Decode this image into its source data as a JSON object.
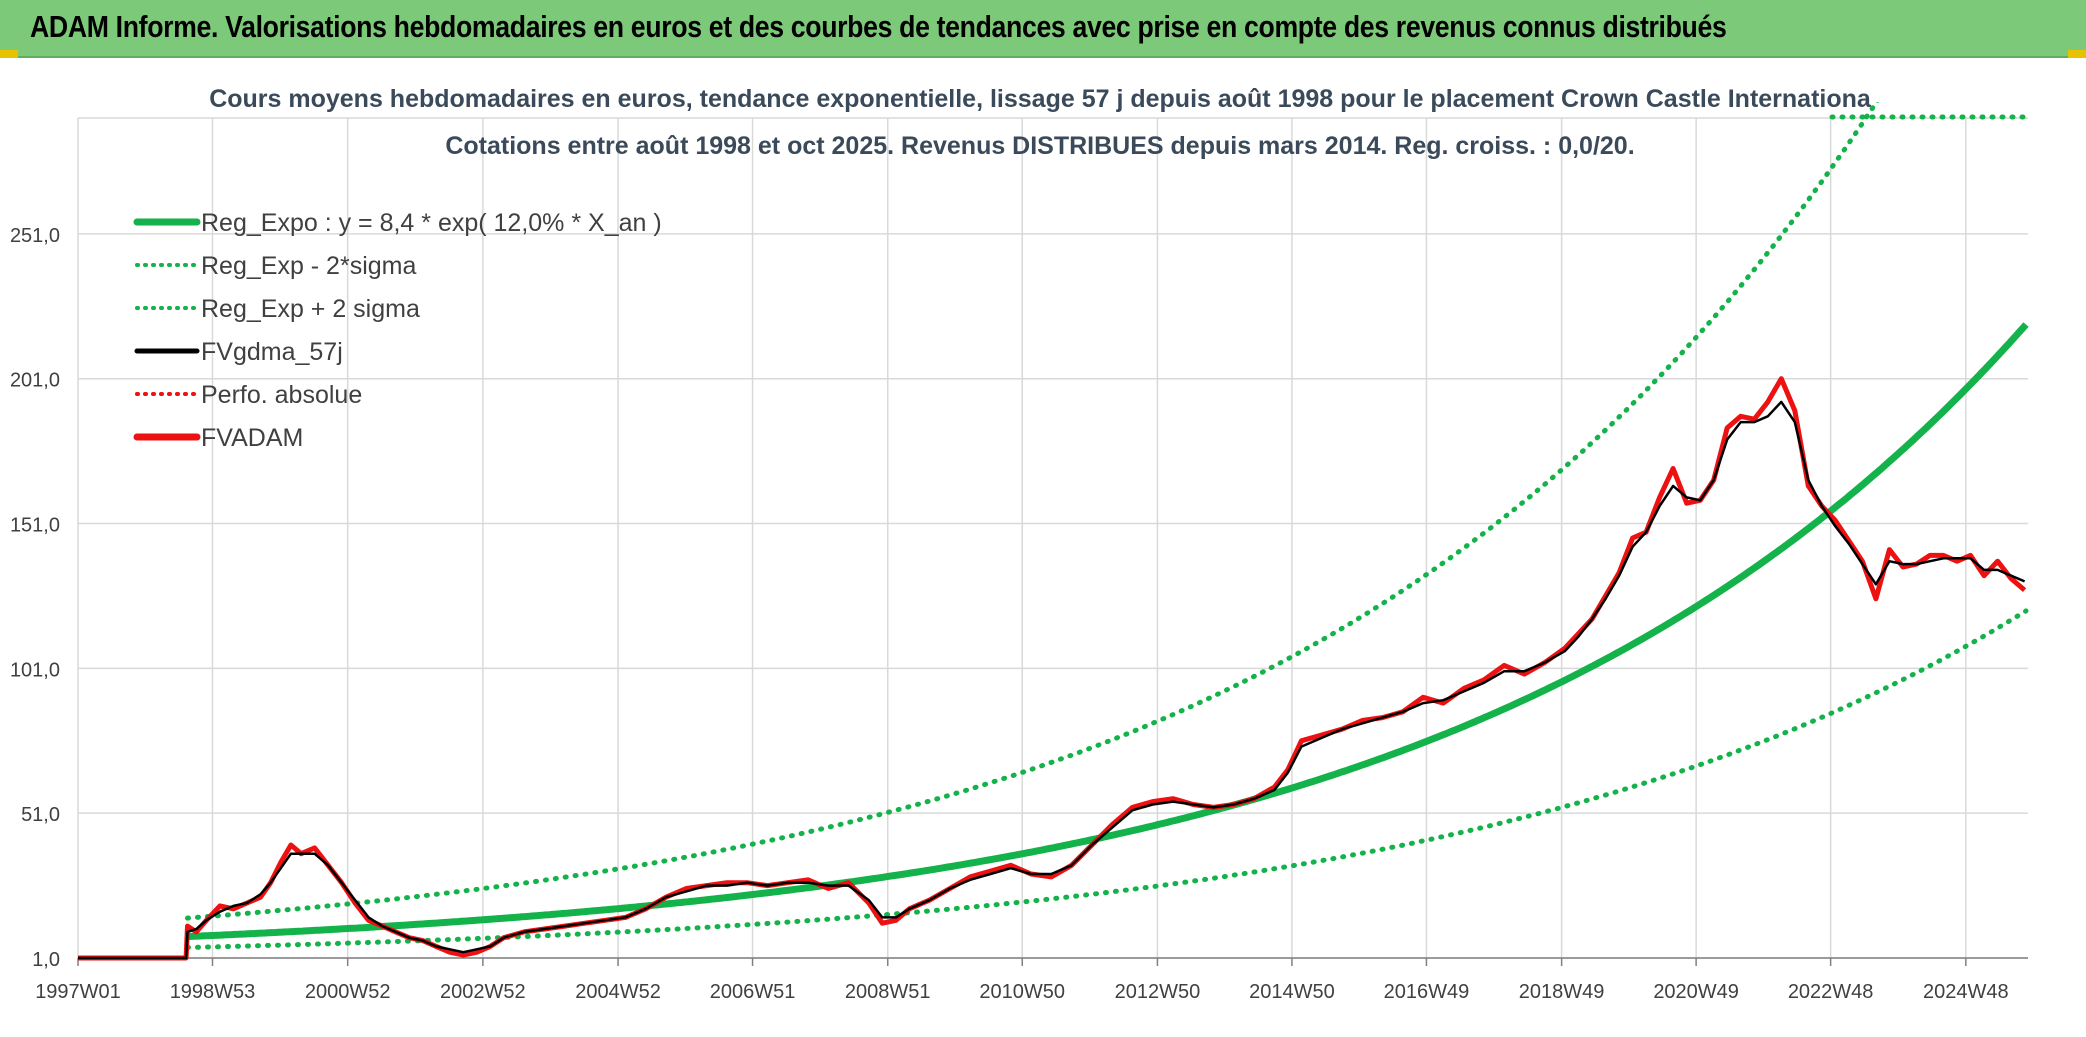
{
  "header": {
    "title": "ADAM Informe. Valorisations hebdomadaires en euros et des courbes de tendances avec prise en compte des revenus connus distribués"
  },
  "colors": {
    "header_bg": "#7dc97a",
    "green": "#13b24a",
    "red": "#ee1111",
    "black": "#000000",
    "grid": "#d9d9d9"
  },
  "chart_data": {
    "type": "line",
    "title": "Cours moyens hebdomadaires en euros, tendance exponentielle, lissage 57 j depuis août 1998 pour le placement Crown Castle Internationa",
    "subtitle": "Cotations entre août 1998 et oct 2025. Revenus DISTRIBUES depuis mars 2014. Reg. croiss. : 0,0/20.",
    "xlabel": "",
    "ylabel": "",
    "x_range": [
      1997.0,
      2025.85
    ],
    "ylim": [
      1,
      291
    ],
    "y_ticks": [
      1,
      51,
      101,
      151,
      201,
      251
    ],
    "y_tick_labels": [
      "1,0",
      "51,0",
      "101,0",
      "151,0",
      "201,0",
      "251,0"
    ],
    "x_ticks": [
      1997.0,
      1998.99,
      2000.99,
      2002.99,
      2004.99,
      2006.98,
      2008.98,
      2010.97,
      2012.97,
      2014.96,
      2016.95,
      2018.95,
      2020.94,
      2022.93,
      2024.93
    ],
    "x_tick_labels": [
      "1997W01",
      "1998W53",
      "2000W52",
      "2002W52",
      "2004W52",
      "2006W51",
      "2008W51",
      "2010W50",
      "2012W50",
      "2014W50",
      "2016W49",
      "2018W49",
      "2020W49",
      "2022W48",
      "2024W48"
    ],
    "legend": [
      {
        "label": "Reg_Expo : y = 8,4 * exp( 12,0% *  X_an )",
        "color": "#13b24a",
        "style": "solid-thick"
      },
      {
        "label": "Reg_Exp - 2*sigma",
        "color": "#13b24a",
        "style": "dotted"
      },
      {
        "label": "Reg_Exp + 2 sigma",
        "color": "#13b24a",
        "style": "dotted"
      },
      {
        "label": "FVgdma_57j",
        "color": "#000000",
        "style": "solid"
      },
      {
        "label": "Perfo. absolue",
        "color": "#ee1111",
        "style": "dotted"
      },
      {
        "label": "FVADAM",
        "color": "#ee1111",
        "style": "solid-thick"
      }
    ],
    "legend_position": "top-left",
    "trend": {
      "start_x": 1998.62,
      "a": 8.4,
      "rate": 0.12,
      "minus_factor": 0.55,
      "plus_factor": 1.76
    },
    "series": [
      {
        "name": "FVADAM",
        "x": [
          1997.0,
          1998.6,
          1998.62,
          1998.75,
          1998.9,
          1999.1,
          1999.3,
          1999.5,
          1999.7,
          1999.85,
          2000.0,
          2000.15,
          2000.3,
          2000.5,
          2000.7,
          2000.9,
          2001.1,
          2001.3,
          2001.5,
          2001.7,
          2001.9,
          2002.1,
          2002.3,
          2002.5,
          2002.7,
          2002.9,
          2003.1,
          2003.3,
          2003.6,
          2003.9,
          2004.2,
          2004.5,
          2004.8,
          2005.1,
          2005.4,
          2005.7,
          2006.0,
          2006.3,
          2006.6,
          2006.9,
          2007.2,
          2007.5,
          2007.8,
          2008.1,
          2008.4,
          2008.7,
          2008.9,
          2009.1,
          2009.3,
          2009.6,
          2009.9,
          2010.2,
          2010.5,
          2010.8,
          2011.1,
          2011.4,
          2011.7,
          2012.0,
          2012.3,
          2012.6,
          2012.9,
          2013.2,
          2013.5,
          2013.8,
          2014.1,
          2014.4,
          2014.7,
          2014.9,
          2015.1,
          2015.4,
          2015.7,
          2016.0,
          2016.3,
          2016.6,
          2016.9,
          2017.2,
          2017.5,
          2017.8,
          2018.1,
          2018.4,
          2018.7,
          2019.0,
          2019.2,
          2019.4,
          2019.6,
          2019.8,
          2020.0,
          2020.2,
          2020.4,
          2020.6,
          2020.8,
          2021.0,
          2021.2,
          2021.4,
          2021.6,
          2021.8,
          2022.0,
          2022.2,
          2022.4,
          2022.6,
          2022.8,
          2023.0,
          2023.2,
          2023.4,
          2023.6,
          2023.8,
          2024.0,
          2024.2,
          2024.4,
          2024.6,
          2024.8,
          2025.0,
          2025.2,
          2025.4,
          2025.6,
          2025.8
        ],
        "values": [
          1,
          1,
          12,
          10,
          14,
          19,
          18,
          20,
          22,
          27,
          34,
          40,
          37,
          39,
          33,
          27,
          20,
          14,
          12,
          10,
          8,
          7,
          5,
          3,
          2,
          3,
          5,
          8,
          10,
          11,
          12,
          13,
          14,
          15,
          18,
          22,
          25,
          26,
          27,
          27,
          26,
          27,
          28,
          25,
          27,
          20,
          13,
          14,
          18,
          21,
          25,
          29,
          31,
          33,
          30,
          29,
          33,
          40,
          47,
          53,
          55,
          56,
          54,
          53,
          54,
          56,
          60,
          66,
          76,
          78,
          80,
          83,
          84,
          86,
          91,
          89,
          94,
          97,
          102,
          99,
          103,
          108,
          113,
          118,
          126,
          134,
          146,
          148,
          160,
          170,
          158,
          159,
          166,
          184,
          188,
          187,
          193,
          201,
          190,
          164,
          157,
          152,
          145,
          138,
          125,
          142,
          136,
          137,
          140,
          140,
          138,
          140,
          133,
          138,
          132,
          128
        ]
      },
      {
        "name": "FVgdma_57j",
        "x": [
          1997.0,
          1998.6,
          1998.62,
          1998.75,
          1998.9,
          1999.1,
          1999.3,
          1999.5,
          1999.7,
          1999.85,
          2000.0,
          2000.15,
          2000.3,
          2000.5,
          2000.7,
          2000.9,
          2001.1,
          2001.3,
          2001.5,
          2001.7,
          2001.9,
          2002.1,
          2002.3,
          2002.5,
          2002.7,
          2002.9,
          2003.1,
          2003.3,
          2003.6,
          2003.9,
          2004.2,
          2004.5,
          2004.8,
          2005.1,
          2005.4,
          2005.7,
          2006.0,
          2006.3,
          2006.6,
          2006.9,
          2007.2,
          2007.5,
          2007.8,
          2008.1,
          2008.4,
          2008.7,
          2008.9,
          2009.1,
          2009.3,
          2009.6,
          2009.9,
          2010.2,
          2010.5,
          2010.8,
          2011.1,
          2011.4,
          2011.7,
          2012.0,
          2012.3,
          2012.6,
          2012.9,
          2013.2,
          2013.5,
          2013.8,
          2014.1,
          2014.4,
          2014.7,
          2014.9,
          2015.1,
          2015.4,
          2015.7,
          2016.0,
          2016.3,
          2016.6,
          2016.9,
          2017.2,
          2017.5,
          2017.8,
          2018.1,
          2018.4,
          2018.7,
          2019.0,
          2019.2,
          2019.4,
          2019.6,
          2019.8,
          2020.0,
          2020.2,
          2020.4,
          2020.6,
          2020.8,
          2021.0,
          2021.2,
          2021.4,
          2021.6,
          2021.8,
          2022.0,
          2022.2,
          2022.4,
          2022.6,
          2022.8,
          2023.0,
          2023.2,
          2023.4,
          2023.6,
          2023.8,
          2024.0,
          2024.2,
          2024.4,
          2024.6,
          2024.8,
          2025.0,
          2025.2,
          2025.4,
          2025.6,
          2025.8
        ],
        "values": [
          1,
          1,
          10,
          11,
          14,
          17,
          19,
          20,
          23,
          27,
          32,
          37,
          37,
          37,
          33,
          27,
          21,
          15,
          12,
          10,
          8,
          7,
          5,
          4,
          3,
          4,
          5,
          8,
          10,
          11,
          12,
          13,
          14,
          15,
          18,
          22,
          24,
          26,
          26,
          27,
          26,
          27,
          27,
          26,
          26,
          21,
          15,
          15,
          18,
          21,
          25,
          28,
          30,
          32,
          30,
          30,
          33,
          40,
          46,
          52,
          54,
          55,
          54,
          53,
          54,
          56,
          59,
          65,
          74,
          77,
          80,
          82,
          84,
          86,
          89,
          90,
          93,
          96,
          100,
          100,
          103,
          107,
          112,
          118,
          125,
          133,
          143,
          148,
          157,
          164,
          160,
          159,
          166,
          180,
          186,
          186,
          188,
          193,
          186,
          166,
          157,
          150,
          144,
          137,
          130,
          138,
          137,
          137,
          138,
          139,
          139,
          139,
          135,
          135,
          133,
          131
        ]
      }
    ]
  }
}
